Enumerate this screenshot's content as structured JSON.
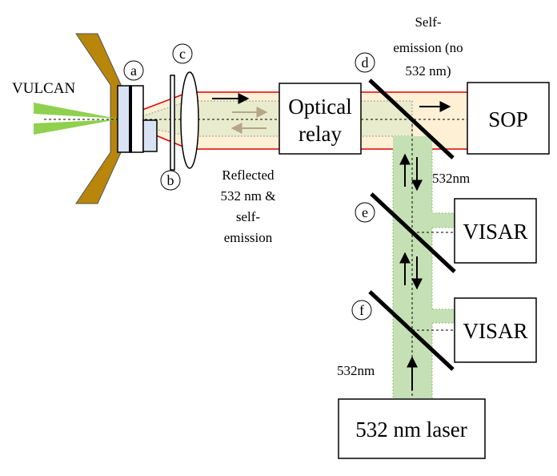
{
  "labels": {
    "vulcan": "VULCAN",
    "optical_relay_line1": "Optical",
    "optical_relay_line2": "relay",
    "sop": "SOP",
    "visar_upper": "VISAR",
    "visar_lower": "VISAR",
    "laser": "532 nm laser",
    "self_emission_line1": "Self-",
    "self_emission_line2": "emission (no",
    "self_emission_line3": "532 nm)",
    "reflected_line1": "Reflected",
    "reflected_line2": "532 nm &",
    "reflected_line3": "self-",
    "reflected_line4": "emission",
    "wavelength_upper": "532nm",
    "wavelength_lower": "532nm"
  },
  "markers": {
    "a": "a",
    "b": "b",
    "c": "c",
    "d": "d",
    "e": "e",
    "f": "f"
  },
  "colors": {
    "target_holder": "#b8860b",
    "drive_beam": "#8fd14f",
    "emission_beam": "#fdf0d5",
    "emission_border": "#e00000",
    "probe_beam": "#c5e0b4",
    "probe_border": "#8fbf6f",
    "sample": "#dae3f3",
    "return_arrow": "#b5a589"
  }
}
